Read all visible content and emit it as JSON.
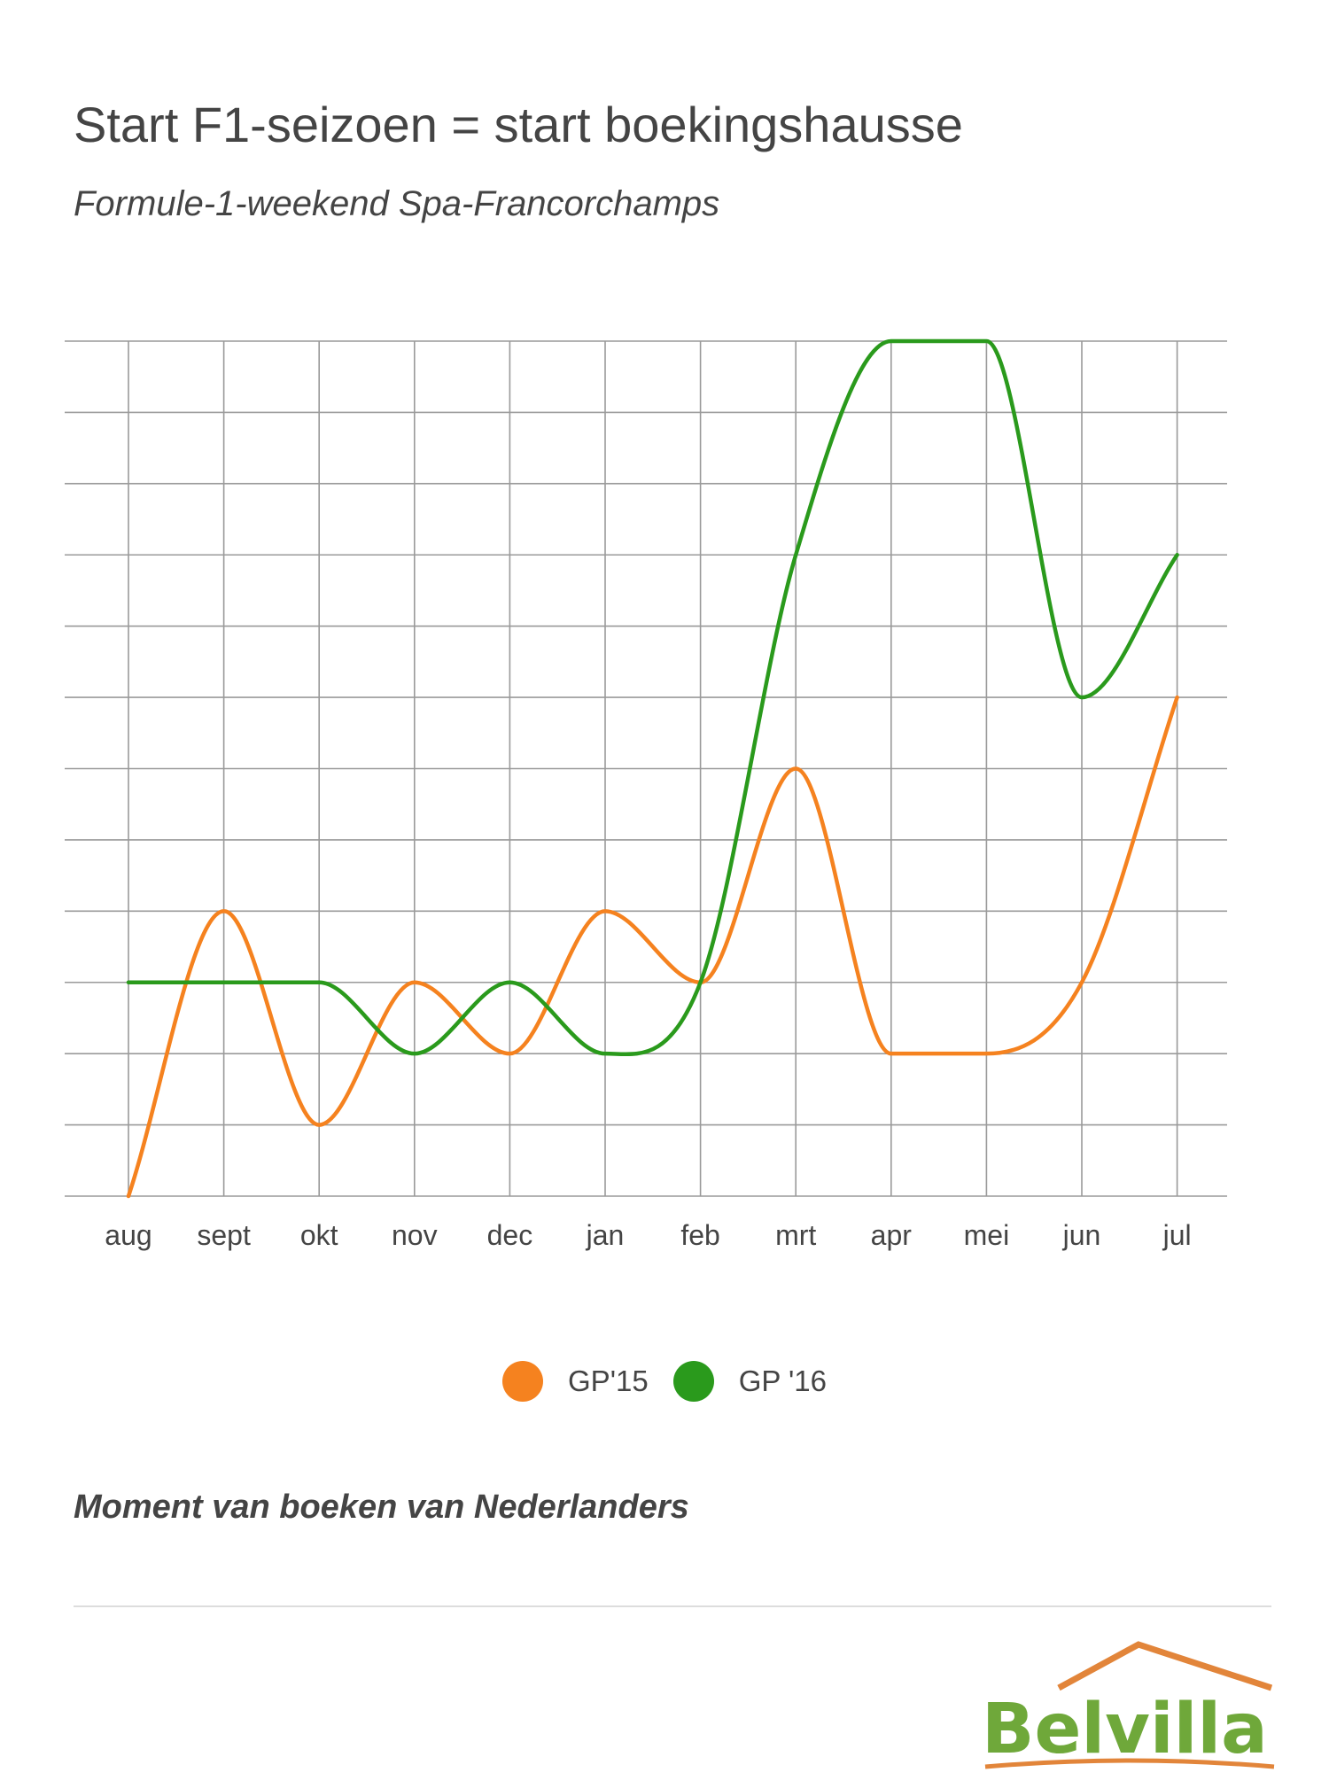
{
  "header": {
    "title": "Start F1-seizoen = start boekingshausse",
    "subtitle": "Formule-1-weekend Spa-Francorchamps"
  },
  "chart_data": {
    "type": "line",
    "title": "",
    "xlabel": "",
    "ylabel": "",
    "categories": [
      "aug",
      "sept",
      "okt",
      "nov",
      "dec",
      "jan",
      "feb",
      "mrt",
      "apr",
      "mei",
      "jun",
      "jul"
    ],
    "series": [
      {
        "name": "GP'15",
        "color": "#f5821f",
        "values": [
          0,
          4,
          1,
          3,
          2,
          4,
          3,
          6,
          2,
          2,
          3,
          7
        ]
      },
      {
        "name": "GP '16",
        "color": "#2a9a1c",
        "values": [
          3,
          3,
          3,
          2,
          3,
          2,
          3,
          9,
          12,
          12,
          7,
          9
        ]
      }
    ],
    "ylim": [
      0,
      12
    ],
    "grid": true,
    "smooth": true,
    "legend": "bottom-center"
  },
  "legend": {
    "items": [
      {
        "label": "GP'15",
        "color": "#f5821f"
      },
      {
        "label": "GP '16",
        "color": "#2a9a1c"
      }
    ]
  },
  "footer": {
    "note": "Moment van boeken van Nederlanders",
    "logo_text": "Belvilla",
    "logo_colors": {
      "text": "#6fa83a",
      "roof": "#e2853a"
    }
  }
}
